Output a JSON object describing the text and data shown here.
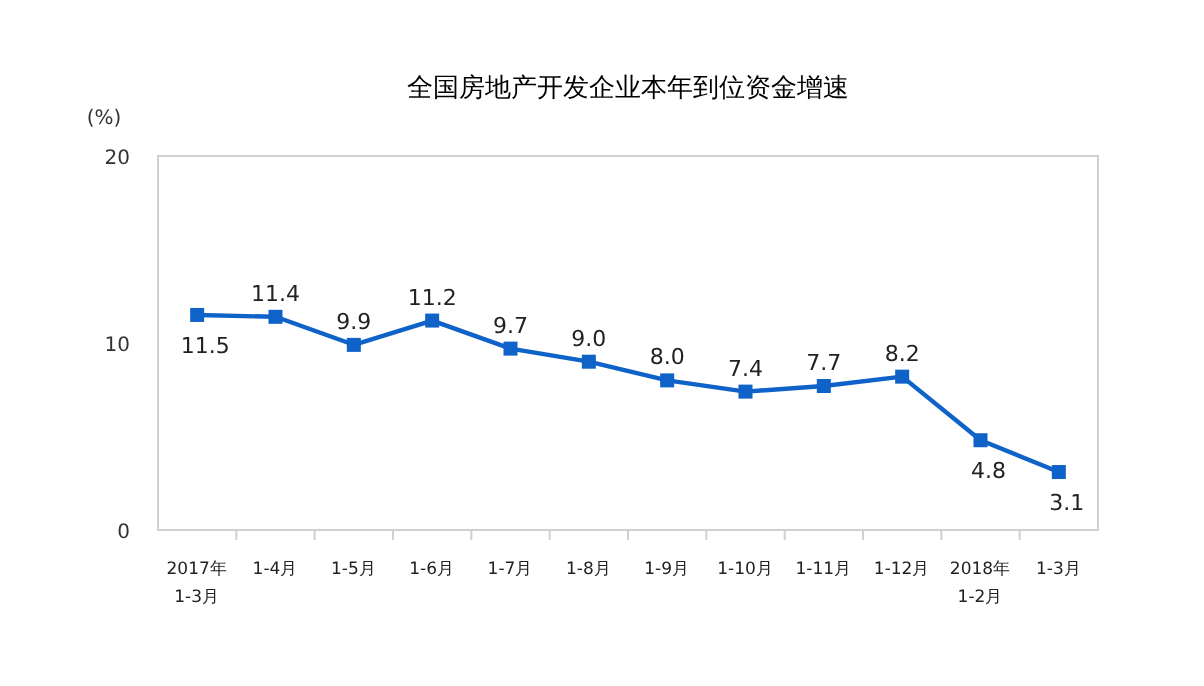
{
  "chart_data": {
    "type": "line",
    "title": "全国房地产开发企业本年到位资金增速",
    "ylabel": "(%)",
    "categories": [
      "2017年 1-3月",
      "1-4月",
      "1-5月",
      "1-6月",
      "1-7月",
      "1-8月",
      "1-9月",
      "1-10月",
      "1-11月",
      "1-12月",
      "2018年 1-2月",
      "1-3月"
    ],
    "values": [
      11.5,
      11.4,
      9.9,
      11.2,
      9.7,
      9.0,
      8.0,
      7.4,
      7.7,
      8.2,
      4.8,
      3.1
    ],
    "value_labels": [
      "11.5",
      "11.4",
      "9.9",
      "11.2",
      "9.7",
      "9.0",
      "8.0",
      "7.4",
      "7.7",
      "8.2",
      "4.8",
      "3.1"
    ],
    "color": "#0e62c8",
    "marker": "square",
    "line_style": "solid",
    "ylim": [
      0,
      20
    ],
    "yticks": [
      0,
      10,
      20
    ],
    "grid": false
  }
}
